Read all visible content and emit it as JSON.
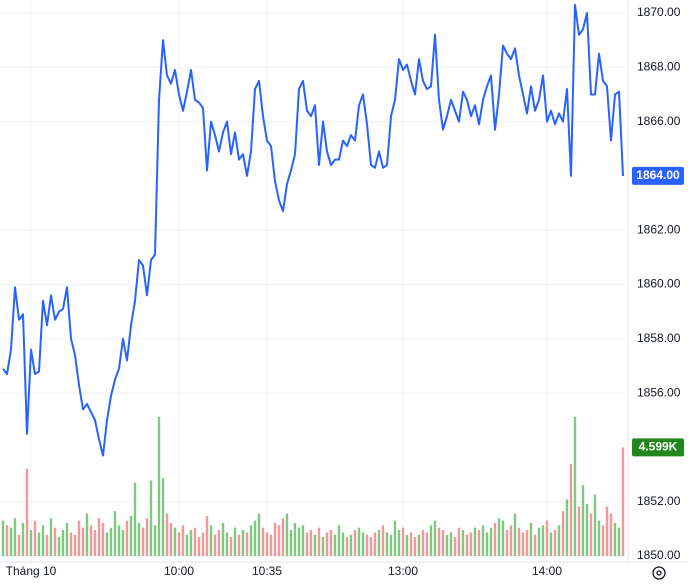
{
  "chart_data": {
    "type": "line",
    "categories": [
      null,
      null,
      null,
      null,
      null,
      null,
      null,
      "Tháng 10",
      null,
      null,
      null,
      null,
      null,
      null,
      null,
      null,
      null,
      null,
      null,
      null,
      null,
      null,
      null,
      null,
      null,
      null,
      null,
      null,
      null,
      null,
      null,
      null,
      null,
      null,
      null,
      null,
      null,
      null,
      null,
      null,
      null,
      null,
      null,
      null,
      "10:00",
      null,
      null,
      null,
      null,
      null,
      null,
      null,
      null,
      null,
      null,
      null,
      null,
      null,
      null,
      null,
      null,
      null,
      null,
      null,
      null,
      null,
      "10:35",
      null,
      null,
      null,
      null,
      null,
      null,
      null,
      null,
      null,
      null,
      null,
      null,
      null,
      null,
      null,
      null,
      null,
      null,
      null,
      null,
      null,
      null,
      null,
      null,
      null,
      null,
      null,
      null,
      null,
      null,
      null,
      null,
      null,
      "13:00",
      null,
      null,
      null,
      null,
      null,
      null,
      null,
      null,
      null,
      null,
      null,
      null,
      null,
      null,
      null,
      null,
      null,
      null,
      null,
      null,
      null,
      null,
      null,
      null,
      null,
      null,
      null,
      null,
      null,
      null,
      null,
      null,
      null,
      null,
      null,
      "14:00",
      null,
      null,
      null,
      null,
      null,
      null,
      null,
      null,
      null,
      null,
      null,
      null,
      null,
      null,
      null,
      null,
      null,
      null,
      null
    ],
    "series": [
      {
        "color": "#2962ff",
        "values": [
          1856.9,
          1856.7,
          1857.6,
          1859.9,
          1858.7,
          1858.9,
          1854.5,
          1857.6,
          1856.7,
          1856.8,
          1859.4,
          1858.5,
          1859.6,
          1858.7,
          1859.0,
          1859.1,
          1859.9,
          1858.0,
          1857.4,
          1856.3,
          1855.4,
          1855.6,
          1855.3,
          1855.0,
          1854.3,
          1853.7,
          1855.0,
          1855.9,
          1856.5,
          1856.9,
          1858.0,
          1857.2,
          1858.5,
          1859.4,
          1860.9,
          1860.7,
          1859.6,
          1860.9,
          1861.1,
          1866.8,
          1869.0,
          1867.7,
          1867.4,
          1867.9,
          1867.0,
          1866.4,
          1867.1,
          1867.9,
          1866.8,
          1866.7,
          1866.5,
          1864.2,
          1866.0,
          1865.5,
          1864.9,
          1865.6,
          1866.0,
          1864.8,
          1865.6,
          1864.6,
          1864.8,
          1864.0,
          1864.9,
          1867.2,
          1867.5,
          1866.2,
          1865.3,
          1865.1,
          1863.8,
          1863.1,
          1862.7,
          1863.7,
          1864.2,
          1864.8,
          1867.2,
          1867.5,
          1866.4,
          1866.2,
          1866.6,
          1864.4,
          1866.0,
          1864.9,
          1864.4,
          1864.6,
          1864.6,
          1865.3,
          1865.1,
          1865.5,
          1865.3,
          1866.6,
          1867.0,
          1865.9,
          1864.4,
          1864.3,
          1864.9,
          1864.3,
          1864.4,
          1866.2,
          1866.8,
          1868.3,
          1867.9,
          1868.1,
          1867.5,
          1867.0,
          1868.3,
          1867.5,
          1867.2,
          1867.3,
          1869.2,
          1866.8,
          1865.7,
          1866.2,
          1866.8,
          1866.4,
          1866.0,
          1867.1,
          1866.8,
          1866.2,
          1866.6,
          1865.9,
          1866.8,
          1867.3,
          1867.7,
          1865.7,
          1867.0,
          1868.8,
          1868.5,
          1868.3,
          1868.7,
          1867.7,
          1867.0,
          1866.3,
          1867.3,
          1866.4,
          1866.8,
          1867.7,
          1866.0,
          1866.4,
          1865.9,
          1866.3,
          1866.0,
          1867.2,
          1864.0,
          1870.3,
          1869.2,
          1869.4,
          1870.0,
          1867.0,
          1867.0,
          1868.5,
          1867.5,
          1867.3,
          1865.3,
          1867.0,
          1867.1,
          1864
        ]
      },
      {
        "axis": "volume",
        "values": [
          1500,
          1300,
          1200,
          1600,
          900,
          1400,
          3700,
          1100,
          1500,
          1000,
          1300,
          900,
          1600,
          1200,
          800,
          1100,
          1400,
          1000,
          900,
          1500,
          1200,
          1800,
          1300,
          1100,
          1600,
          1400,
          1000,
          1200,
          1900,
          1300,
          1100,
          1500,
          1700,
          3100,
          1400,
          1200,
          1600,
          3200,
          1300,
          5900,
          3300,
          1800,
          1400,
          1200,
          1000,
          1300,
          900,
          1100,
          1200,
          800,
          1000,
          1700,
          1300,
          900,
          1100,
          1400,
          1000,
          800,
          1200,
          900,
          1100,
          1000,
          1300,
          1500,
          1800,
          1200,
          1000,
          900,
          1400,
          1300,
          1600,
          1800,
          1100,
          1400,
          1200,
          1300,
          1000,
          1100,
          900,
          1200,
          800,
          1000,
          1100,
          900,
          1300,
          1000,
          800,
          900,
          1100,
          1200,
          1000,
          900,
          800,
          1000,
          1100,
          1300,
          1000,
          900,
          1500,
          1100,
          1200,
          900,
          1000,
          800,
          900,
          1100,
          1000,
          1300,
          1500,
          1200,
          1100,
          900,
          1000,
          800,
          1200,
          1100,
          900,
          1000,
          1200,
          1100,
          1300,
          1000,
          1200,
          1400,
          1600,
          1500,
          1100,
          1300,
          1800,
          1200,
          1000,
          1100,
          1400,
          900,
          1200,
          1300,
          1500,
          1000,
          1100,
          1300,
          1900,
          2400,
          3900,
          5900,
          2100,
          3000,
          2200,
          1800,
          2600,
          1500,
          1300,
          2100,
          1800,
          1400,
          1200,
          4599
        ]
      }
    ],
    "volume_lim": [
      0,
      23000
    ],
    "ylim": [
      1850,
      1870
    ],
    "yticks": [
      {
        "value": 1850,
        "label": "1850.00"
      },
      {
        "value": 1852,
        "label": "1852.00"
      },
      {
        "value": 1856,
        "label": "1856.00"
      },
      {
        "value": 1858,
        "label": "1858.00"
      },
      {
        "value": 1860,
        "label": "1860.00"
      },
      {
        "value": 1862,
        "label": "1862.00"
      },
      {
        "value": 1866,
        "label": "1866.00"
      },
      {
        "value": 1868,
        "label": "1868.00"
      },
      {
        "value": 1870,
        "label": "1870.00"
      }
    ],
    "last_price_label": "1864.00",
    "last_volume_label": "4.599K",
    "up_color": "#81c784",
    "down_color": "#ef9a9a",
    "grid": true
  }
}
